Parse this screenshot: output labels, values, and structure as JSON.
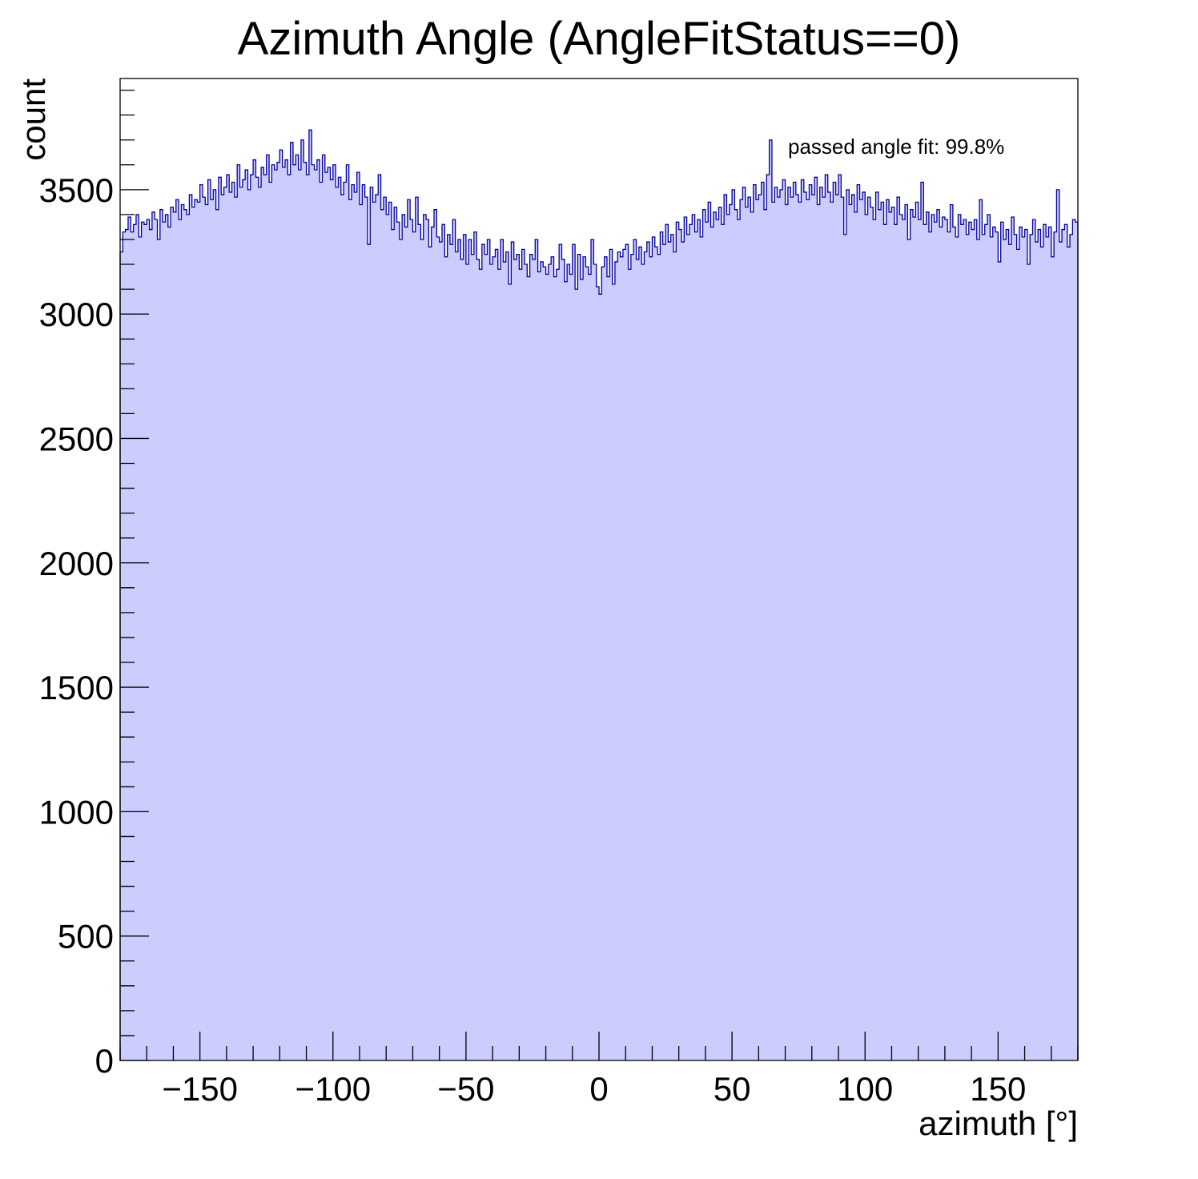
{
  "chart_data": {
    "type": "bar",
    "histogram": true,
    "title": "Azimuth Angle (AngleFitStatus==0)",
    "xlabel": "azimuth [°]",
    "ylabel": "count",
    "annotation": "passed angle fit: 99.8%",
    "xlim": [
      -180,
      180
    ],
    "ylim": [
      0,
      3947
    ],
    "x_ticks": [
      -150,
      -100,
      -50,
      0,
      50,
      100,
      150
    ],
    "x_tick_labels": [
      "−150",
      "−100",
      "−50",
      "0",
      "50",
      "100",
      "150"
    ],
    "y_ticks": [
      0,
      500,
      1000,
      1500,
      2000,
      2500,
      3000,
      3500
    ],
    "y_tick_labels": [
      "0",
      "500",
      "1000",
      "1500",
      "2000",
      "2500",
      "3000",
      "3500"
    ],
    "bin_width": 1,
    "bin_start": -180,
    "fill_color": "#ccccff",
    "line_color": "#000099",
    "values": [
      3250,
      3330,
      3340,
      3390,
      3330,
      3360,
      3400,
      3310,
      3370,
      3360,
      3380,
      3340,
      3410,
      3380,
      3300,
      3420,
      3370,
      3400,
      3350,
      3430,
      3410,
      3460,
      3380,
      3440,
      3420,
      3400,
      3480,
      3430,
      3460,
      3450,
      3520,
      3470,
      3440,
      3540,
      3460,
      3500,
      3420,
      3550,
      3480,
      3510,
      3560,
      3490,
      3530,
      3470,
      3600,
      3510,
      3540,
      3580,
      3500,
      3560,
      3620,
      3550,
      3510,
      3590,
      3560,
      3640,
      3530,
      3600,
      3580,
      3610,
      3660,
      3590,
      3620,
      3560,
      3690,
      3600,
      3640,
      3580,
      3700,
      3610,
      3560,
      3740,
      3600,
      3580,
      3620,
      3530,
      3640,
      3570,
      3590,
      3540,
      3600,
      3510,
      3550,
      3480,
      3530,
      3600,
      3460,
      3520,
      3490,
      3570,
      3440,
      3520,
      3470,
      3280,
      3510,
      3450,
      3480,
      3560,
      3420,
      3470,
      3400,
      3450,
      3340,
      3430,
      3370,
      3300,
      3400,
      3350,
      3460,
      3380,
      3330,
      3470,
      3360,
      3300,
      3400,
      3380,
      3270,
      3350,
      3420,
      3310,
      3290,
      3360,
      3230,
      3320,
      3280,
      3380,
      3250,
      3300,
      3220,
      3320,
      3200,
      3300,
      3240,
      3330,
      3220,
      3180,
      3280,
      3240,
      3300,
      3200,
      3230,
      3260,
      3180,
      3300,
      3210,
      3250,
      3120,
      3290,
      3220,
      3240,
      3180,
      3260,
      3200,
      3150,
      3240,
      3220,
      3300,
      3170,
      3210,
      3190,
      3160,
      3200,
      3230,
      3150,
      3180,
      3280,
      3220,
      3130,
      3200,
      3160,
      3280,
      3100,
      3240,
      3140,
      3230,
      3190,
      3160,
      3300,
      3200,
      3110,
      3080,
      3190,
      3230,
      3150,
      3260,
      3120,
      3210,
      3250,
      3230,
      3260,
      3280,
      3180,
      3240,
      3300,
      3220,
      3270,
      3200,
      3250,
      3290,
      3230,
      3310,
      3270,
      3240,
      3330,
      3280,
      3360,
      3290,
      3320,
      3250,
      3370,
      3340,
      3290,
      3390,
      3320,
      3360,
      3400,
      3330,
      3380,
      3310,
      3420,
      3370,
      3450,
      3350,
      3410,
      3380,
      3430,
      3360,
      3480,
      3400,
      3440,
      3500,
      3420,
      3380,
      3460,
      3510,
      3430,
      3470,
      3410,
      3520,
      3460,
      3480,
      3530,
      3420,
      3560,
      3700,
      3450,
      3510,
      3470,
      3500,
      3540,
      3440,
      3510,
      3470,
      3530,
      3480,
      3450,
      3540,
      3490,
      3460,
      3520,
      3480,
      3550,
      3440,
      3510,
      3470,
      3560,
      3490,
      3450,
      3530,
      3480,
      3560,
      3470,
      3320,
      3500,
      3440,
      3480,
      3410,
      3520,
      3460,
      3490,
      3400,
      3470,
      3430,
      3380,
      3490,
      3420,
      3450,
      3360,
      3460,
      3410,
      3430,
      3360,
      3470,
      3400,
      3380,
      3440,
      3300,
      3420,
      3390,
      3450,
      3380,
      3530,
      3360,
      3410,
      3330,
      3400,
      3370,
      3420,
      3350,
      3390,
      3380,
      3330,
      3440,
      3350,
      3310,
      3400,
      3360,
      3380,
      3320,
      3370,
      3340,
      3380,
      3300,
      3460,
      3320,
      3360,
      3400,
      3310,
      3350,
      3330,
      3210,
      3370,
      3300,
      3340,
      3280,
      3390,
      3320,
      3260,
      3350,
      3310,
      3340,
      3200,
      3320,
      3380,
      3290,
      3340,
      3270,
      3360,
      3310,
      3350,
      3230,
      3330,
      3500,
      3290,
      3340,
      3360,
      3270,
      3320,
      3380,
      3370
    ]
  }
}
